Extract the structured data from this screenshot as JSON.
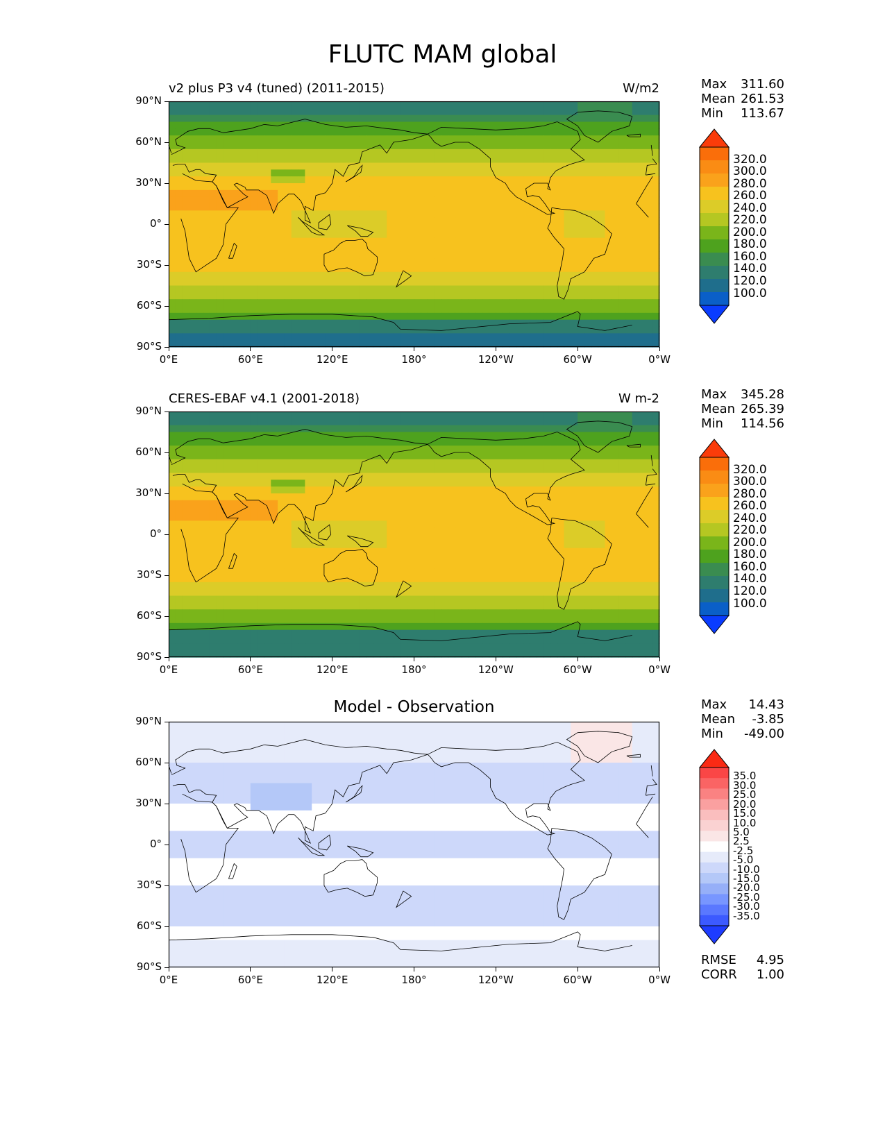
{
  "title": "FLUTC MAM global",
  "panels": [
    {
      "id": "model",
      "left_title": "v2 plus P3 v4 (tuned) (2011-2015)",
      "right_title": "W/m2",
      "center_title": "",
      "stats": [
        {
          "label": "Max",
          "value": "311.60"
        },
        {
          "label": "Mean",
          "value": "261.53"
        },
        {
          "label": "Min",
          "value": "113.67"
        }
      ],
      "colorbar_ticks": [
        "320.0",
        "300.0",
        "280.0",
        "260.0",
        "240.0",
        "220.0",
        "200.0",
        "180.0",
        "160.0",
        "140.0",
        "120.0",
        "100.0"
      ]
    },
    {
      "id": "obs",
      "left_title": "CERES-EBAF v4.1 (2001-2018)",
      "right_title": "W m-2",
      "center_title": "",
      "stats": [
        {
          "label": "Max",
          "value": "345.28"
        },
        {
          "label": "Mean",
          "value": "265.39"
        },
        {
          "label": "Min",
          "value": "114.56"
        }
      ],
      "colorbar_ticks": [
        "320.0",
        "300.0",
        "280.0",
        "260.0",
        "240.0",
        "220.0",
        "200.0",
        "180.0",
        "160.0",
        "140.0",
        "120.0",
        "100.0"
      ]
    },
    {
      "id": "diff",
      "left_title": "",
      "right_title": "",
      "center_title": "Model - Observation",
      "stats": [
        {
          "label": "Max",
          "value": "14.43"
        },
        {
          "label": "Mean",
          "value": "-3.85"
        },
        {
          "label": "Min",
          "value": "-49.00"
        }
      ],
      "colorbar_ticks": [
        "35.0",
        "30.0",
        "25.0",
        "20.0",
        "15.0",
        "10.0",
        "5.0",
        "2.5",
        "-2.5",
        "-5.0",
        "-10.0",
        "-15.0",
        "-20.0",
        "-25.0",
        "-30.0",
        "-35.0"
      ],
      "extra_stats": [
        {
          "label": "RMSE",
          "value": "4.95"
        },
        {
          "label": "CORR",
          "value": "1.00"
        }
      ]
    }
  ],
  "lat_ticks": [
    "90°N",
    "60°N",
    "30°N",
    "0°",
    "30°S",
    "60°S",
    "90°S"
  ],
  "lon_ticks": [
    "0°E",
    "60°E",
    "120°E",
    "180°",
    "120°W",
    "60°W",
    "0°W"
  ],
  "colors": {
    "abs_colormap": [
      "#0a3cff",
      "#0a5fc8",
      "#1f6e8c",
      "#2e7d6e",
      "#3a8c50",
      "#4ea21e",
      "#7ab51a",
      "#b5c722",
      "#dccc28",
      "#f7c21e",
      "#faa21b",
      "#fa8c14",
      "#fa6e0a",
      "#fa3c0a"
    ],
    "diff_colormap": [
      "#1e3cff",
      "#3c5aff",
      "#5a78ff",
      "#7896ff",
      "#96aff8",
      "#b4c8f8",
      "#cdd8fa",
      "#e6ebfa",
      "#ffffff",
      "#fae6e6",
      "#fad2d2",
      "#fabebe",
      "#faa0a0",
      "#fa8282",
      "#fa6464",
      "#fa4646",
      "#fa2a14"
    ]
  }
}
